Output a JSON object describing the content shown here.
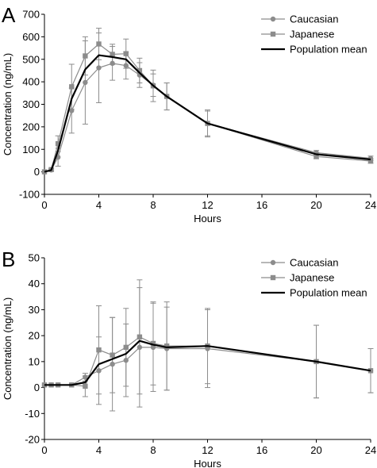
{
  "colors": {
    "caucasian": "#8c8c8c",
    "japanese": "#8c8c8c",
    "population_mean": "#000000"
  },
  "chart_data": [
    {
      "panel": "A",
      "type": "line",
      "xlabel": "Hours",
      "ylabel": "Concentration (ng/mL)",
      "xlim": [
        0,
        24
      ],
      "ylim": [
        -100,
        700
      ],
      "xticks": [
        0,
        4,
        8,
        12,
        16,
        20,
        24
      ],
      "yticks": [
        -100,
        0,
        100,
        200,
        300,
        400,
        500,
        600,
        700
      ],
      "legend_position": "top-right",
      "series": [
        {
          "name": "Caucasian",
          "marker": "circle",
          "x": [
            0,
            0.5,
            1,
            2,
            3,
            4,
            5,
            6,
            7,
            8,
            9,
            12,
            20,
            24
          ],
          "y": [
            0,
            8,
            65,
            272,
            397,
            462,
            482,
            472,
            430,
            385,
            335,
            215,
            85,
            60
          ],
          "err": [
            0,
            5,
            40,
            100,
            185,
            155,
            75,
            60,
            55,
            50,
            60,
            60,
            10,
            10
          ]
        },
        {
          "name": "Japanese",
          "marker": "square",
          "x": [
            0,
            0.5,
            1,
            2,
            3,
            4,
            5,
            6,
            7,
            8,
            9,
            12,
            20,
            24
          ],
          "y": [
            0,
            10,
            125,
            378,
            515,
            568,
            522,
            525,
            450,
            382,
            335,
            215,
            68,
            48
          ],
          "err": [
            0,
            5,
            35,
            100,
            85,
            70,
            45,
            65,
            55,
            70,
            60,
            55,
            10,
            10
          ]
        },
        {
          "name": "Population mean",
          "marker": "none",
          "x": [
            0,
            0.5,
            1,
            2,
            3,
            4,
            5,
            6,
            7,
            8,
            9,
            12,
            20,
            24
          ],
          "y": [
            0,
            8,
            95,
            325,
            455,
            518,
            510,
            500,
            440,
            383,
            335,
            215,
            78,
            55
          ]
        }
      ]
    },
    {
      "panel": "B",
      "type": "line",
      "xlabel": "Hours",
      "ylabel": "Concentration (ng/mL)",
      "xlim": [
        0,
        24
      ],
      "ylim": [
        -20,
        50
      ],
      "xticks": [
        0,
        4,
        8,
        12,
        16,
        20,
        24
      ],
      "yticks": [
        -20,
        -10,
        0,
        10,
        20,
        30,
        40,
        50
      ],
      "legend_position": "top-right",
      "series": [
        {
          "name": "Caucasian",
          "marker": "circle",
          "x": [
            0,
            0.5,
            1,
            2,
            3,
            4,
            5,
            6,
            7,
            8,
            9,
            12,
            20,
            24
          ],
          "y": [
            1,
            1,
            1,
            1,
            4,
            6.5,
            9,
            10.5,
            15.5,
            15.5,
            15,
            15,
            10,
            6.5
          ],
          "err": [
            0,
            0,
            0,
            0,
            1.5,
            13,
            18,
            14,
            23,
            17,
            16,
            15,
            14,
            8.5
          ]
        },
        {
          "name": "Japanese",
          "marker": "square",
          "x": [
            0,
            0.5,
            1,
            2,
            3,
            4,
            5,
            6,
            7,
            8,
            9,
            12,
            20,
            24
          ],
          "y": [
            1,
            1,
            1,
            1,
            0.5,
            14.5,
            12.5,
            15.5,
            19.5,
            17,
            16,
            16,
            10,
            6.5
          ],
          "err": [
            0,
            0,
            0,
            0,
            4,
            17,
            14.5,
            15,
            22,
            16,
            17,
            14.5,
            14,
            8.5
          ]
        },
        {
          "name": "Population mean",
          "marker": "none",
          "x": [
            0,
            0.5,
            1,
            2,
            3,
            4,
            5,
            6,
            7,
            8,
            9,
            12,
            20,
            24
          ],
          "y": [
            1,
            1,
            1,
            1,
            2,
            9,
            11,
            13,
            18,
            16.5,
            15.5,
            16,
            10,
            6.5
          ]
        }
      ]
    }
  ]
}
